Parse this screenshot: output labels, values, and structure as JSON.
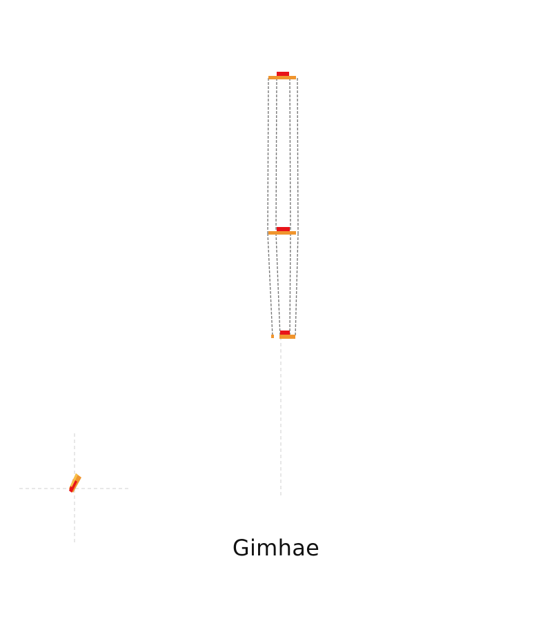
{
  "diagram": {
    "caption": "Gimhae",
    "colors": {
      "outline": "#7a7a7a",
      "guide": "#cfcfcf",
      "layer_orange": "#f0952e",
      "layer_red": "#e8141a",
      "background": "#ffffff"
    }
  }
}
